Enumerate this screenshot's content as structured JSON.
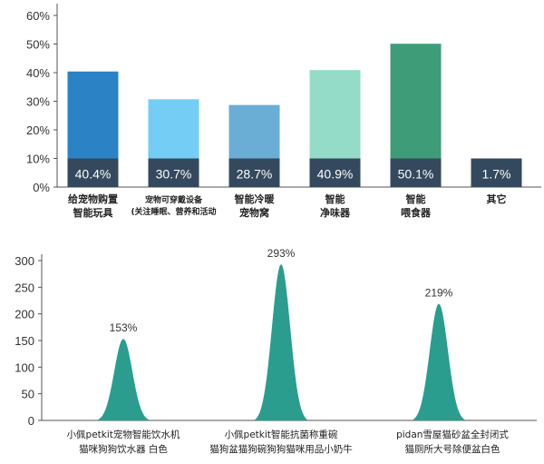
{
  "chart_data": [
    {
      "type": "bar",
      "categories": [
        [
          "给宠物购置",
          "智能玩具"
        ],
        [
          "宠物可穿戴设备",
          "(关注睡眠、营养和活动"
        ],
        [
          "智能冷暖",
          "宠物窝"
        ],
        [
          "智能",
          "净味器"
        ],
        [
          "智能",
          "喂食器"
        ],
        [
          "其它"
        ]
      ],
      "values": [
        40.4,
        30.7,
        28.7,
        40.9,
        50.1,
        1.7
      ],
      "value_labels": [
        "40.4%",
        "30.7%",
        "28.7%",
        "40.9%",
        "50.1%",
        "1.7%"
      ],
      "colors": [
        "#2b83c6",
        "#74cdf5",
        "#6aaed6",
        "#94dcc7",
        "#3f9c78",
        "#34495e"
      ],
      "label_band_color": "#34495e",
      "yticks": [
        "0%",
        "10%",
        "20%",
        "30%",
        "40%",
        "50%",
        "60%"
      ],
      "ylim": [
        0,
        60
      ]
    },
    {
      "type": "area",
      "categories": [
        [
          "小佩petkit宠物智能饮水机",
          "猫咪狗狗饮水器 白色"
        ],
        [
          "小佩petkit智能抗菌称重碗",
          "猫狗盆猫狗碗狗狗猫咪用品小奶牛"
        ],
        [
          "pidan雪屋猫砂盆全封闭式",
          "猫厕所大号除便盆白色"
        ]
      ],
      "values": [
        153,
        293,
        219
      ],
      "peak_labels": [
        "153%",
        "293%",
        "219%"
      ],
      "color": "#2a9d8f",
      "yticks": [
        "0",
        "50",
        "100",
        "150",
        "200",
        "250",
        "300"
      ],
      "ylim": [
        0,
        300
      ]
    }
  ]
}
